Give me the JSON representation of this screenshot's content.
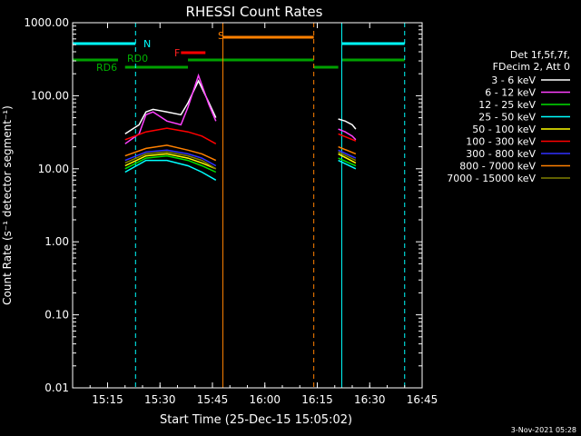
{
  "chart_data": {
    "type": "line",
    "title": "RHESSI Count Rates",
    "xlabel": "Start Time (25-Dec-15 15:05:02)",
    "ylabel": "Count Rate (s⁻¹ detector segment⁻¹)",
    "yscale": "log",
    "ylim": [
      0.01,
      1000
    ],
    "xlim": [
      "15:05",
      "16:45"
    ],
    "x_ticks": [
      "15:15",
      "15:30",
      "15:45",
      "16:00",
      "16:15",
      "16:30",
      "16:45"
    ],
    "y_ticks": [
      "0.01",
      "0.10",
      "1.00",
      "10.00",
      "100.00",
      "1000.00"
    ],
    "grid": false,
    "legend_position": "right",
    "legend_header": [
      "Det 1f,5f,7f,",
      "FDecim 2, Att 0"
    ],
    "series": [
      {
        "name": "3 - 6 keV",
        "color": "#ffffff",
        "x": [
          "15:20",
          "15:24",
          "15:26",
          "15:28",
          "15:32",
          "15:36",
          "15:38",
          "15:41",
          "15:44",
          "15:46",
          "16:21",
          "16:23",
          "16:25",
          "16:26"
        ],
        "y": [
          30,
          40,
          60,
          65,
          60,
          55,
          80,
          160,
          80,
          50,
          48,
          45,
          40,
          35
        ]
      },
      {
        "name": "6 - 12 keV",
        "color": "#ff40ff",
        "x": [
          "15:20",
          "15:24",
          "15:26",
          "15:28",
          "15:32",
          "15:36",
          "15:38",
          "15:41",
          "15:44",
          "15:46",
          "16:21",
          "16:23",
          "16:25",
          "16:26"
        ],
        "y": [
          22,
          30,
          55,
          60,
          45,
          40,
          70,
          190,
          75,
          45,
          35,
          32,
          28,
          25
        ]
      },
      {
        "name": "12 - 25 keV",
        "color": "#00e000",
        "x": [
          "15:20",
          "15:26",
          "15:32",
          "15:38",
          "15:42",
          "15:46",
          "16:21",
          "16:26"
        ],
        "y": [
          10,
          14,
          15,
          13,
          11,
          9,
          14,
          11
        ]
      },
      {
        "name": "25 - 50 keV",
        "color": "#00ffff",
        "x": [
          "15:20",
          "15:26",
          "15:32",
          "15:38",
          "15:42",
          "15:46",
          "16:21",
          "16:26"
        ],
        "y": [
          9,
          13,
          13,
          11,
          9,
          7,
          13,
          10
        ]
      },
      {
        "name": "50 - 100 keV",
        "color": "#ffff00",
        "x": [
          "15:20",
          "15:26",
          "15:32",
          "15:38",
          "15:42",
          "15:46",
          "16:21",
          "16:26"
        ],
        "y": [
          11,
          15,
          16,
          14,
          12,
          10,
          16,
          12
        ]
      },
      {
        "name": "100 - 300 keV",
        "color": "#ff0000",
        "x": [
          "15:20",
          "15:26",
          "15:32",
          "15:38",
          "15:42",
          "15:46",
          "16:21",
          "16:26"
        ],
        "y": [
          25,
          32,
          36,
          32,
          28,
          22,
          30,
          24
        ]
      },
      {
        "name": "300 - 800 keV",
        "color": "#3030ff",
        "x": [
          "15:20",
          "15:26",
          "15:32",
          "15:38",
          "15:42",
          "15:46",
          "16:21",
          "16:26"
        ],
        "y": [
          13,
          17,
          18,
          16,
          14,
          11,
          18,
          14
        ]
      },
      {
        "name": "800 - 7000 keV",
        "color": "#ff8000",
        "x": [
          "15:20",
          "15:26",
          "15:32",
          "15:38",
          "15:42",
          "15:46",
          "16:21",
          "16:26"
        ],
        "y": [
          15,
          19,
          21,
          18,
          16,
          13,
          20,
          16
        ]
      },
      {
        "name": "7000 - 15000 keV",
        "color": "#808000",
        "x": [
          "15:20",
          "15:26",
          "15:32",
          "15:38",
          "15:42",
          "15:46",
          "16:21",
          "16:26"
        ],
        "y": [
          12,
          16,
          17,
          15,
          13,
          10,
          17,
          13
        ]
      }
    ],
    "annotations": [
      {
        "text": "N",
        "color": "#00ffff"
      },
      {
        "text": "S",
        "color": "#ff8000"
      },
      {
        "text": "F",
        "color": "#ff0000"
      },
      {
        "text": "RD0",
        "color": "#00a000"
      },
      {
        "text": "RD6",
        "color": "#00a000"
      }
    ],
    "timestamp": "3-Nov-2021 05:28"
  }
}
